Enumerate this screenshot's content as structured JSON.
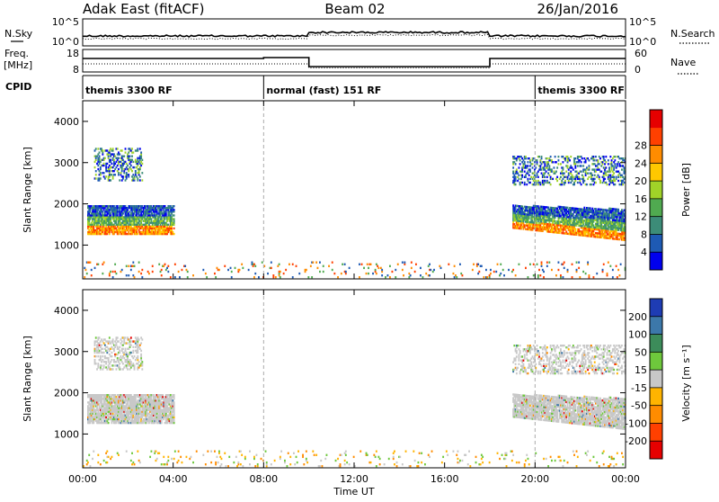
{
  "header": {
    "left": "Adak East (fitACF)",
    "center": "Beam 02",
    "right": "26/Jan/2016"
  },
  "nsky_panel": {
    "left_label": "N.Sky",
    "right_label": "N.Search",
    "left_ticks": [
      "10^5",
      "10^0"
    ],
    "right_ticks": [
      "10^5",
      "10^0"
    ]
  },
  "freq_panel": {
    "left_label_top": "Freq.",
    "left_label_unit": "[MHz]",
    "left_ticks": [
      "18",
      "8"
    ],
    "right_label": "Nave",
    "right_ticks": [
      "60",
      "0"
    ]
  },
  "cpid_panel": {
    "label": "CPID",
    "modes": [
      {
        "text": "themis 3300 RF",
        "start_hour": 0,
        "end_hour": 8
      },
      {
        "text": "normal (fast) 151 RF",
        "start_hour": 8,
        "end_hour": 20
      },
      {
        "text": "themis 3300 RF",
        "start_hour": 20,
        "end_hour": 24
      }
    ]
  },
  "chart_data": [
    {
      "type": "heatmap",
      "name": "Power",
      "ylabel": "Slant Range [km]",
      "ylim": [
        180,
        4500
      ],
      "yticks": [
        1000,
        2000,
        3000,
        4000
      ],
      "xlim": [
        0,
        24
      ],
      "colorbar": {
        "label": "Power [dB]",
        "ticks": [
          "4",
          "8",
          "12",
          "16",
          "20",
          "24",
          "28"
        ],
        "range": [
          0,
          32
        ],
        "colors": [
          "#0000ee",
          "#1e5ab4",
          "#3c8c78",
          "#50aa50",
          "#a0d228",
          "#ffc800",
          "#ff8c00",
          "#ff4000",
          "#e60000"
        ]
      },
      "regions": [
        {
          "t": [
            0.2,
            4.0
          ],
          "r": [
            1250,
            1950
          ],
          "mode": "low_band"
        },
        {
          "t": [
            0.5,
            2.6
          ],
          "r": [
            2550,
            3350
          ],
          "mode": "upper"
        },
        {
          "t": [
            19.0,
            24.0
          ],
          "r": [
            1100,
            1950
          ],
          "mode": "low_band"
        },
        {
          "t": [
            19.0,
            24.0
          ],
          "r": [
            2450,
            3150
          ],
          "mode": "upper"
        },
        {
          "t": [
            0.0,
            24.0
          ],
          "r": [
            200,
            600
          ],
          "mode": "sparse"
        }
      ]
    },
    {
      "type": "heatmap",
      "name": "Velocity",
      "ylabel": "Slant Range [km]",
      "ylim": [
        180,
        4500
      ],
      "yticks": [
        1000,
        2000,
        3000,
        4000
      ],
      "xlim": [
        0,
        24
      ],
      "colorbar": {
        "label": "Velocity [m s⁻¹]",
        "ticks": [
          "200",
          "100",
          "50",
          "15",
          "-15",
          "-50",
          "-100",
          "-200"
        ],
        "colors": [
          "#1e3cb4",
          "#3c78aa",
          "#3c8c5a",
          "#6ec83c",
          "#c8c8c8",
          "#ffb400",
          "#ff8c00",
          "#ff4000",
          "#e60000"
        ]
      },
      "regions": [
        {
          "t": [
            0.2,
            4.0
          ],
          "r": [
            1250,
            1950
          ],
          "mode": "low_band"
        },
        {
          "t": [
            0.5,
            2.6
          ],
          "r": [
            2550,
            3350
          ],
          "mode": "upper"
        },
        {
          "t": [
            19.0,
            24.0
          ],
          "r": [
            1100,
            1950
          ],
          "mode": "low_band"
        },
        {
          "t": [
            19.0,
            24.0
          ],
          "r": [
            2450,
            3150
          ],
          "mode": "upper"
        },
        {
          "t": [
            0.0,
            24.0
          ],
          "r": [
            200,
            600
          ],
          "mode": "sparse"
        }
      ]
    }
  ],
  "time_axis": {
    "label": "Time UT",
    "ticks": [
      "00:00",
      "04:00",
      "08:00",
      "12:00",
      "16:00",
      "20:00",
      "00:00"
    ]
  }
}
